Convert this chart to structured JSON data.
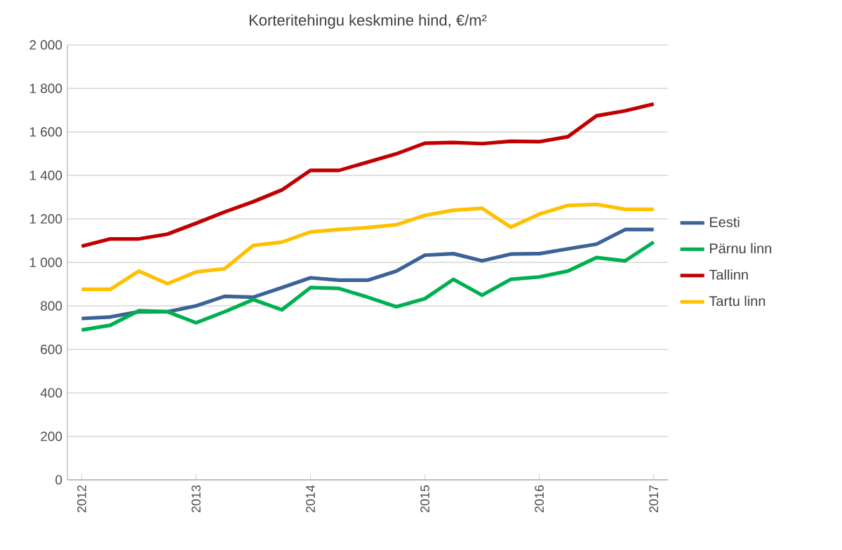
{
  "chart_data": {
    "type": "line",
    "title": "Korteritehingu keskmine hind, €/m²",
    "x": [
      2012,
      2012.25,
      2012.5,
      2012.75,
      2013,
      2013.25,
      2013.5,
      2013.75,
      2014,
      2014.25,
      2014.5,
      2014.75,
      2015,
      2015.25,
      2015.5,
      2015.75,
      2016,
      2016.25,
      2016.5,
      2016.75,
      2017
    ],
    "series": [
      {
        "name": "Eesti",
        "color": "#3a6397",
        "values": [
          742,
          749,
          773,
          773,
          800,
          844,
          840,
          884,
          929,
          918,
          918,
          960,
          1033,
          1040,
          1007,
          1038,
          1040,
          1062,
          1084,
          1151,
          1151
        ]
      },
      {
        "name": "Pärnu linn",
        "color": "#00b050",
        "values": [
          689,
          711,
          778,
          773,
          722,
          773,
          829,
          782,
          884,
          880,
          840,
          796,
          833,
          922,
          849,
          922,
          933,
          960,
          1022,
          1007,
          1093
        ]
      },
      {
        "name": "Tallinn",
        "color": "#c00000",
        "values": [
          1074,
          1108,
          1108,
          1130,
          1180,
          1232,
          1279,
          1333,
          1423,
          1423,
          1461,
          1499,
          1548,
          1551,
          1546,
          1557,
          1555,
          1578,
          1674,
          1697,
          1728
        ]
      },
      {
        "name": "Tartu linn",
        "color": "#ffc000",
        "values": [
          876,
          876,
          960,
          902,
          956,
          971,
          1078,
          1093,
          1140,
          1151,
          1160,
          1173,
          1216,
          1240,
          1249,
          1162,
          1222,
          1262,
          1267,
          1244,
          1244
        ]
      }
    ],
    "xlim": [
      2011.875,
      2017.125
    ],
    "xticks": [
      2012,
      2013,
      2014,
      2015,
      2016,
      2017
    ],
    "ylim": [
      0,
      2000
    ],
    "yticks": [
      0,
      200,
      400,
      600,
      800,
      {
        "value": 1000,
        "label": "1 000"
      },
      {
        "value": 1200,
        "label": "1 200"
      },
      {
        "value": 1400,
        "label": "1 400"
      },
      {
        "value": 1600,
        "label": "1 600"
      },
      {
        "value": 1800,
        "label": "1 800"
      },
      {
        "value": 2000,
        "label": "2 000"
      }
    ],
    "grid": "y",
    "legend": "right",
    "marker": "none",
    "line_style": "solid"
  }
}
